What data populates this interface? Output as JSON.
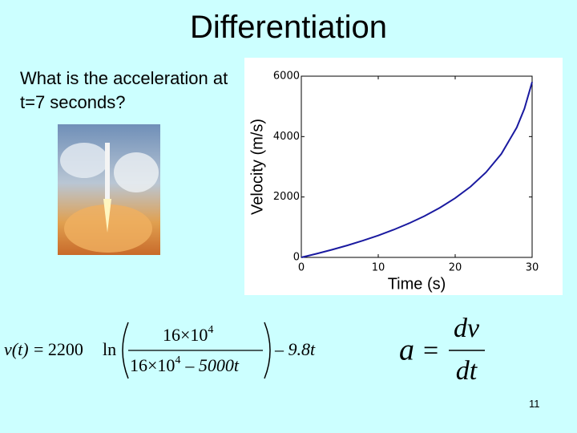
{
  "slide": {
    "title": "Differentiation",
    "question": "What is the acceleration at t=7 seconds?",
    "page_number": "11",
    "velocity_formula": {
      "lhs": "v(t)",
      "coefficient": "= 2200",
      "ln": "ln",
      "numerator": {
        "base": "16×10",
        "exponent": "4"
      },
      "denominator": {
        "base": "16×10",
        "exponent": "4",
        "rest": "– 5000t"
      },
      "tail": "– 9.8t"
    },
    "acceleration_formula": {
      "lhs": "a",
      "equals": "=",
      "numerator": "dv",
      "denominator": "dt"
    }
  },
  "chart_data": {
    "type": "line",
    "xlabel": "Time (s)",
    "ylabel": "Velocity (m/s)",
    "x": [
      0,
      2,
      4,
      6,
      8,
      10,
      12,
      14,
      16,
      18,
      20,
      22,
      24,
      26,
      28,
      29,
      30
    ],
    "series": [
      {
        "color": "#1a1aa0",
        "values": [
          0,
          122,
          255,
          398,
          555,
          726,
          916,
          1129,
          1368,
          1642,
          1962,
          2343,
          2815,
          3428,
          4300,
          4924,
          5806
        ]
      }
    ],
    "xlim": [
      0,
      30
    ],
    "ylim": [
      0,
      6000
    ],
    "xticks": [
      0,
      10,
      20,
      30
    ],
    "yticks": [
      0,
      2000,
      4000,
      6000
    ]
  }
}
